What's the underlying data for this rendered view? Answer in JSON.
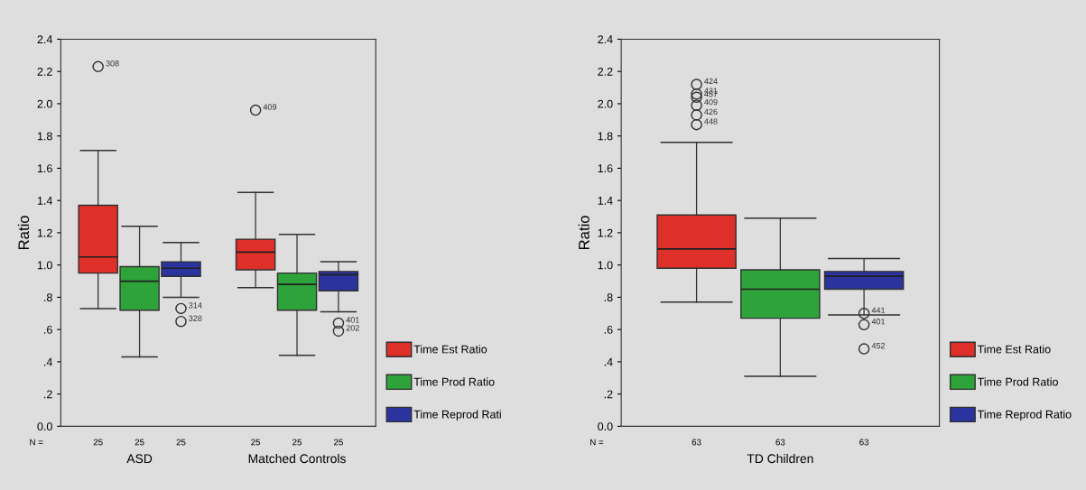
{
  "chart_data": [
    {
      "type": "box",
      "ylabel": "Ratio",
      "categories": [
        "ASD",
        "Matched Controls"
      ],
      "ylim": [
        0,
        2.4
      ],
      "yticks": [
        {
          "value": 0,
          "label": "0.0"
        },
        {
          "value": 0.2,
          "label": ".2"
        },
        {
          "value": 0.4,
          "label": ".4"
        },
        {
          "value": 0.6,
          "label": ".6"
        },
        {
          "value": 0.8,
          "label": ".8"
        },
        {
          "value": 1.0,
          "label": "1.0"
        },
        {
          "value": 1.2,
          "label": "1.2"
        },
        {
          "value": 1.4,
          "label": "1.4"
        },
        {
          "value": 1.6,
          "label": "1.6"
        },
        {
          "value": 1.8,
          "label": "1.8"
        },
        {
          "value": 2.0,
          "label": "2.0"
        },
        {
          "value": 2.2,
          "label": "2.2"
        },
        {
          "value": 2.4,
          "label": "2.4"
        }
      ],
      "grid": false,
      "legend": "right",
      "series": [
        {
          "name": "Time Est Ratio",
          "color": "#de2f28",
          "boxes": [
            {
              "low": 0.73,
              "q1": 0.95,
              "median": 1.05,
              "q3": 1.37,
              "high": 1.71,
              "outliers": [
                2.23
              ]
            },
            {
              "low": 0.86,
              "q1": 0.97,
              "median": 1.08,
              "q3": 1.16,
              "high": 1.45,
              "outliers": [
                1.96
              ]
            }
          ]
        },
        {
          "name": "Time Prod Ratio",
          "color": "#2ea33a",
          "boxes": [
            {
              "low": 0.43,
              "q1": 0.72,
              "median": 0.9,
              "q3": 0.99,
              "high": 1.24
            },
            {
              "low": 0.44,
              "q1": 0.72,
              "median": 0.88,
              "q3": 0.95,
              "high": 1.19
            }
          ]
        },
        {
          "name": "Time Reprod Rati",
          "color": "#2b339e",
          "boxes": [
            {
              "low": 0.8,
              "q1": 0.93,
              "median": 0.98,
              "q3": 1.02,
              "high": 1.14,
              "outliers": [
                0.73,
                0.65
              ]
            },
            {
              "low": 0.71,
              "q1": 0.84,
              "median": 0.94,
              "q3": 0.96,
              "high": 1.02,
              "outliers": [
                0.64,
                0.59
              ]
            }
          ]
        }
      ],
      "annotations": [
        "N =",
        "25",
        "25",
        "25",
        "25",
        "25",
        "25",
        "308",
        "314",
        "328",
        "409",
        "401",
        "202"
      ]
    },
    {
      "type": "box",
      "ylabel": "Ratio",
      "categories": [
        "TD Children"
      ],
      "ylim": [
        0,
        2.4
      ],
      "yticks": [
        {
          "value": 0,
          "label": "0.0"
        },
        {
          "value": 0.2,
          "label": ".2"
        },
        {
          "value": 0.4,
          "label": ".4"
        },
        {
          "value": 0.6,
          "label": ".6"
        },
        {
          "value": 0.8,
          "label": ".8"
        },
        {
          "value": 1.0,
          "label": "1.0"
        },
        {
          "value": 1.2,
          "label": "1.2"
        },
        {
          "value": 1.4,
          "label": "1.4"
        },
        {
          "value": 1.6,
          "label": "1.6"
        },
        {
          "value": 1.8,
          "label": "1.8"
        },
        {
          "value": 2.0,
          "label": "2.0"
        },
        {
          "value": 2.2,
          "label": "2.2"
        },
        {
          "value": 2.4,
          "label": "2.4"
        }
      ],
      "grid": false,
      "legend": "right",
      "series": [
        {
          "name": "Time Est Ratio",
          "color": "#de2f28",
          "boxes": [
            {
              "low": 0.77,
              "q1": 0.98,
              "median": 1.1,
              "q3": 1.31,
              "high": 1.76,
              "outliers": [
                2.12,
                2.06,
                2.04,
                1.99,
                1.93,
                1.87
              ]
            }
          ]
        },
        {
          "name": "Time Prod Ratio",
          "color": "#2ea33a",
          "boxes": [
            {
              "low": 0.31,
              "q1": 0.67,
              "median": 0.85,
              "q3": 0.97,
              "high": 1.29
            }
          ]
        },
        {
          "name": "Time Reprod Ratio",
          "color": "#2b339e",
          "boxes": [
            {
              "low": 0.69,
              "q1": 0.85,
              "median": 0.93,
              "q3": 0.96,
              "high": 1.04,
              "outliers": [
                0.7,
                0.63,
                0.48
              ]
            }
          ]
        }
      ],
      "annotations": [
        "N =",
        "63",
        "63",
        "63",
        "424",
        "431",
        "457",
        "409",
        "426",
        "448",
        "441",
        "401",
        "452"
      ]
    }
  ]
}
